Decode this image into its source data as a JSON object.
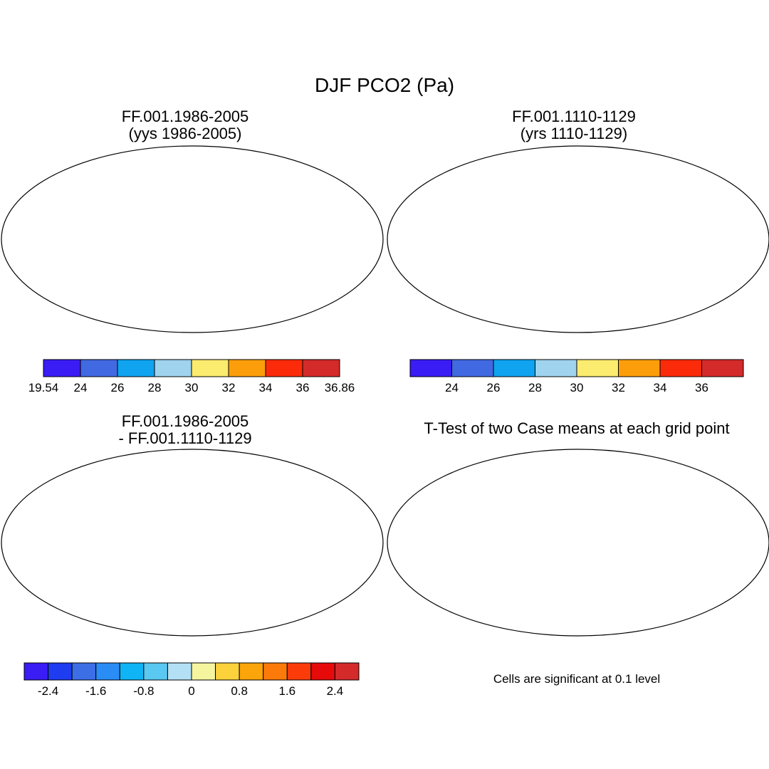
{
  "main_title": "DJF PCO2 (Pa)",
  "panels": [
    {
      "id": "p1",
      "title_line1": "FF.001.1986-2005",
      "title_line2": "(yys 1986-2005)",
      "style": "model"
    },
    {
      "id": "p2",
      "title_line1": "FF.001.1110-1129",
      "title_line2": "(yrs 1110-1129)",
      "style": "obs"
    },
    {
      "id": "p3",
      "title_line1": "FF.001.1986-2005",
      "title_line2": "- FF.001.1110-1129",
      "style": "diff"
    },
    {
      "id": "p4",
      "title_line1": "T-Test of two Case means at each grid point",
      "title_line2": "",
      "style": "ttest"
    }
  ],
  "colorbars": {
    "top_left": {
      "colors": [
        "#3a1cf5",
        "#4169e1",
        "#0fa3f0",
        "#9fd3ee",
        "#fbeb6e",
        "#fb9e0a",
        "#fb2b0a",
        "#d42a2a"
      ],
      "labels": [
        "19.54",
        "24",
        "26",
        "28",
        "30",
        "32",
        "34",
        "36",
        "36.86"
      ]
    },
    "top_right": {
      "colors": [
        "#3a1cf5",
        "#4169e1",
        "#0fa3f0",
        "#9fd3ee",
        "#fbeb6e",
        "#fb9e0a",
        "#fb2b0a",
        "#d42a2a"
      ],
      "labels": [
        "24",
        "26",
        "28",
        "30",
        "32",
        "34",
        "36"
      ]
    },
    "bottom_left": {
      "colors": [
        "#3a1cf5",
        "#1e3cf0",
        "#3c6ee6",
        "#2a8cf5",
        "#0fb4f5",
        "#5ac8f0",
        "#b4e0f5",
        "#f5f5a0",
        "#fbd23c",
        "#fba50a",
        "#fb7a0a",
        "#fb3c0a",
        "#e60a0a",
        "#d42a2a"
      ],
      "labels": [
        "-2.4",
        "-1.6",
        "-0.8",
        "0",
        "0.8",
        "1.6",
        "2.4"
      ]
    }
  },
  "note": "Cells are significant at 0.1 level"
}
